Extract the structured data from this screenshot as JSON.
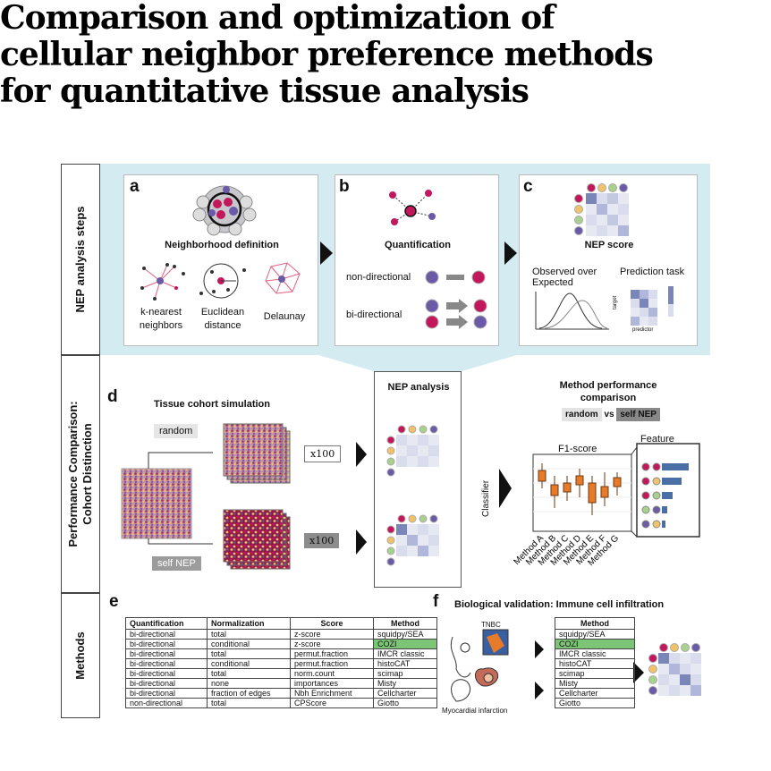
{
  "title": "Comparison and optimization of cellular neighbor preference methods for quantitative tissue analysis",
  "sidebar": {
    "nep_steps": "NEP analysis steps",
    "performance": "Performance Comparison:",
    "cohort": "Cohort Distinction",
    "methods": "Methods"
  },
  "panel_a": {
    "letter": "a",
    "heading": "Neighborhood definition",
    "knn": "k-nearest neighbors",
    "euclid": "Euclidean distance",
    "delaunay": "Delaunay"
  },
  "panel_b": {
    "letter": "b",
    "heading": "Quantification",
    "nondir": "non-directional",
    "bidir": "bi-directional"
  },
  "panel_c": {
    "letter": "c",
    "heading": "NEP score",
    "obs": "Observed over Expected",
    "pred": "Prediction task",
    "target": "target",
    "predictor": "predictor"
  },
  "panel_d": {
    "letter": "d",
    "sim_title": "Tissue cohort simulation",
    "random": "random",
    "selfnep": "self NEP",
    "x100_top": "x100",
    "x100_bottom": "x100",
    "nep_title": "NEP analysis",
    "perf_title": "Method performance comparison",
    "random_tag": "random",
    "vs": "vs",
    "selfnep_tag": "self NEP",
    "classifier": "Classifier",
    "f1": "F1-score",
    "feat": "Feature importances",
    "methods": [
      "Method A",
      "Method B",
      "Method C",
      "Method D",
      "Method E",
      "Method F",
      "Method G"
    ]
  },
  "panel_e": {
    "letter": "e",
    "headers": [
      "Quantification",
      "Normalization",
      "Score",
      "Method"
    ],
    "rows": [
      [
        "bi-directional",
        "total",
        "z-score",
        "squidpy/SEA"
      ],
      [
        "bi-directional",
        "conditional",
        "z-score",
        "COZI"
      ],
      [
        "bi-directional",
        "total",
        "permut.fraction",
        "IMCR classic"
      ],
      [
        "bi-directional",
        "conditional",
        "permut.fraction",
        "histoCAT"
      ],
      [
        "bi-directional",
        "total",
        "norm.count",
        "scimap"
      ],
      [
        "bi-directional",
        "none",
        "importances",
        "Misty"
      ],
      [
        "bi-directional",
        "fraction of edges",
        "Nbh Enrichment",
        "Cellcharter"
      ],
      [
        "non-directional",
        "total",
        "CPScore",
        "Giotto"
      ]
    ]
  },
  "panel_f": {
    "letter": "f",
    "title": "Biological validation: Immune cell infiltration",
    "tnbc": "TNBC",
    "mi": "Myocardial infarction",
    "header": "Method",
    "methods": [
      "squidpy/SEA",
      "COZI",
      "IMCR classic",
      "histoCAT",
      "scimap",
      "Misty",
      "Cellcharter",
      "Giotto"
    ]
  },
  "colors": {
    "light_blue": "#d4ebf2",
    "highlight": "#7cc576",
    "pink": "#c2185b",
    "purple": "#6a5aa8",
    "orange": "#e87b2a",
    "yellow": "#f0c36a",
    "green": "#a9d18e",
    "heat_dark": "#7b86b8",
    "heat_light": "#d9dcec"
  }
}
